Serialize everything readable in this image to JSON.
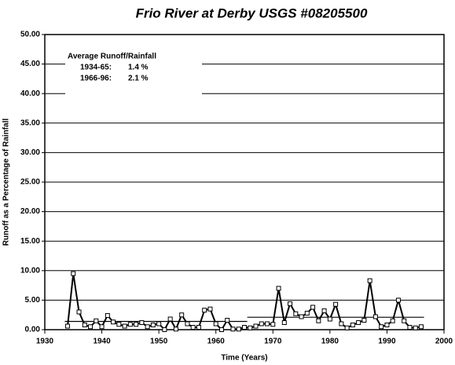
{
  "chart_data": {
    "type": "line",
    "title": "Frio River at Derby USGS #08205500",
    "xlabel": "Time (Years)",
    "ylabel": "Runoff as a Percentage of Rainfall",
    "x": [
      1934,
      1935,
      1936,
      1937,
      1938,
      1939,
      1940,
      1941,
      1942,
      1943,
      1944,
      1945,
      1946,
      1947,
      1948,
      1949,
      1950,
      1951,
      1952,
      1953,
      1954,
      1955,
      1956,
      1957,
      1958,
      1959,
      1960,
      1961,
      1962,
      1963,
      1964,
      1965,
      1966,
      1967,
      1968,
      1969,
      1970,
      1971,
      1972,
      1973,
      1974,
      1975,
      1976,
      1977,
      1978,
      1979,
      1980,
      1981,
      1982,
      1983,
      1984,
      1985,
      1986,
      1987,
      1988,
      1989,
      1990,
      1991,
      1992,
      1993,
      1994,
      1995,
      1996
    ],
    "series": [
      {
        "name": "Runoff",
        "color": "#000000",
        "values": [
          0.6,
          9.5,
          3.0,
          0.8,
          0.5,
          1.5,
          0.5,
          2.4,
          1.3,
          0.9,
          0.6,
          0.9,
          0.9,
          1.2,
          0.5,
          0.8,
          1.0,
          0.0,
          1.8,
          0.1,
          2.5,
          1.0,
          0.4,
          0.4,
          3.3,
          3.5,
          1.0,
          0.0,
          1.6,
          0.1,
          0.1,
          0.4,
          0.3,
          0.6,
          1.0,
          1.0,
          0.9,
          7.0,
          1.2,
          4.4,
          2.7,
          2.2,
          2.8,
          3.8,
          1.5,
          3.2,
          1.8,
          4.3,
          1.0,
          0.3,
          0.8,
          1.2,
          1.6,
          8.3,
          2.2,
          0.5,
          0.8,
          1.5,
          5.0,
          1.5,
          0.4,
          0.3,
          0.5
        ]
      }
    ],
    "annotation_title": "Average Runoff/Rainfall",
    "averages": [
      {
        "period": "1934-65:",
        "label": "1.4 %",
        "value": 1.4,
        "start": 1934,
        "end": 1965
      },
      {
        "period": "1966-96:",
        "label": "2.1 %",
        "value": 2.1,
        "start": 1966,
        "end": 1996
      }
    ],
    "xlim": [
      1930,
      2000
    ],
    "xticks": [
      1930,
      1940,
      1950,
      1960,
      1970,
      1980,
      1990,
      2000
    ],
    "ylim": [
      0,
      50
    ],
    "yticks": [
      {
        "value": 0,
        "label": "0.00"
      },
      {
        "value": 5,
        "label": "5.00"
      },
      {
        "value": 10,
        "label": "10.00"
      },
      {
        "value": 15,
        "label": "15.00"
      },
      {
        "value": 20,
        "label": "20.00"
      },
      {
        "value": 25,
        "label": "25.00"
      },
      {
        "value": 30,
        "label": "30.00"
      },
      {
        "value": 35,
        "label": "35.00"
      },
      {
        "value": 40,
        "label": "40.00"
      },
      {
        "value": 45,
        "label": "45.00"
      },
      {
        "value": 50,
        "label": "50.00"
      }
    ],
    "grid": true
  }
}
